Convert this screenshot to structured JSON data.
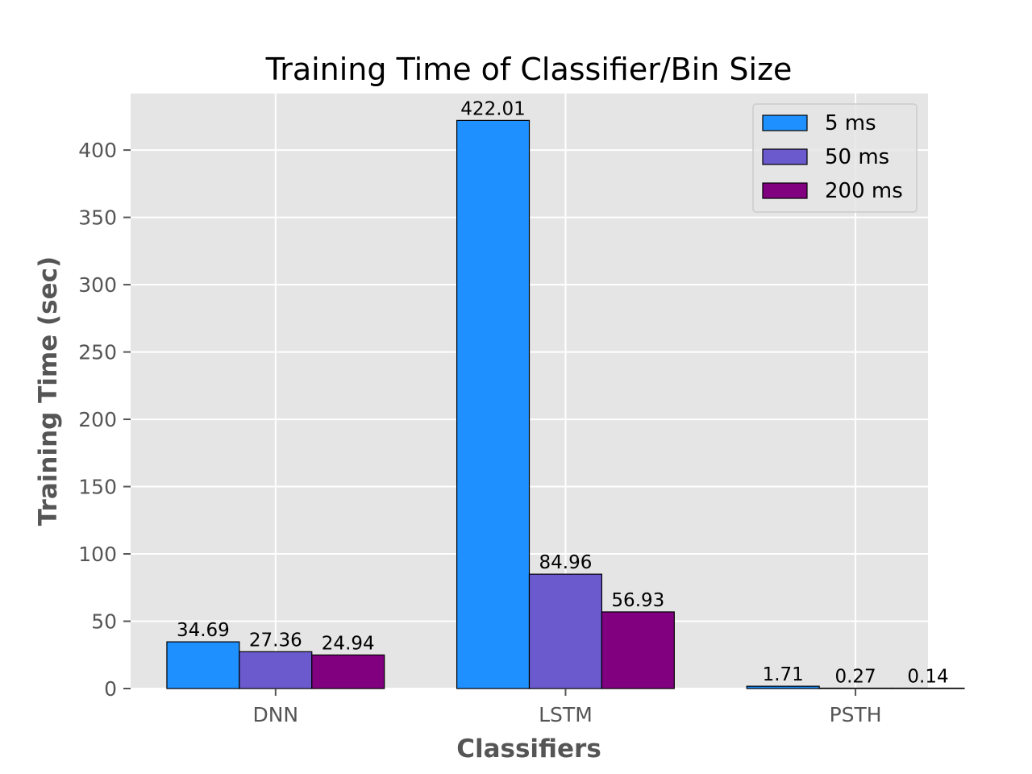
{
  "chart_data": {
    "type": "bar",
    "title": "Training Time of Classifier/Bin Size",
    "xlabel": "Classifiers",
    "ylabel": "Training Time (sec)",
    "categories": [
      "DNN",
      "LSTM",
      "PSTH"
    ],
    "series": [
      {
        "name": "5 ms",
        "color": "#1e90ff",
        "values": [
          34.69,
          422.01,
          1.71
        ],
        "labels": [
          "34.69",
          "422.01",
          "1.71"
        ]
      },
      {
        "name": "50 ms",
        "color": "#6a5acd",
        "values": [
          27.36,
          84.96,
          0.27
        ],
        "labels": [
          "27.36",
          "84.96",
          "0.27"
        ]
      },
      {
        "name": "200 ms",
        "color": "#800080",
        "values": [
          24.94,
          56.93,
          0.14
        ],
        "labels": [
          "24.94",
          "56.93",
          "0.14"
        ]
      }
    ],
    "ylim": [
      0,
      442
    ],
    "yticks": [
      0,
      50,
      100,
      150,
      200,
      250,
      300,
      350,
      400
    ],
    "ytick_labels": [
      "0",
      "50",
      "100",
      "150",
      "200",
      "250",
      "300",
      "350",
      "400"
    ],
    "grid": true,
    "legend_position": "top-right",
    "style": {
      "background": "#e5e5e5",
      "grid_color": "#ffffff",
      "bar_edge": "#000000"
    }
  }
}
